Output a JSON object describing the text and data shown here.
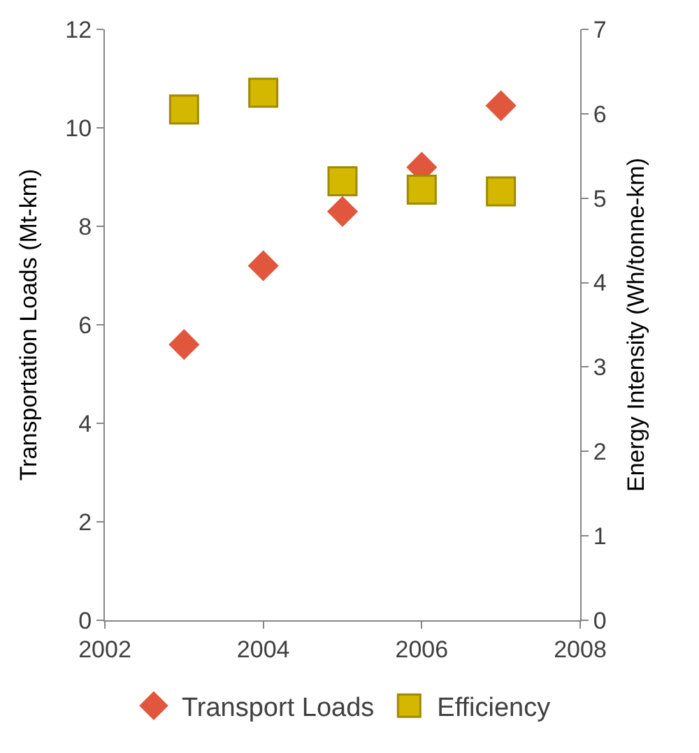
{
  "chart_data": {
    "type": "scatter",
    "x": [
      2003,
      2004,
      2005,
      2006,
      2007
    ],
    "series": [
      {
        "name": "Transport Loads",
        "color": "#e0573d",
        "marker": "diamond",
        "values": [
          5.6,
          7.2,
          8.3,
          9.2,
          10.45
        ]
      },
      {
        "name": "Efficiency",
        "color": "#d4b800",
        "marker": "square",
        "axis": "y2",
        "values": [
          6.05,
          6.25,
          5.2,
          5.1,
          5.08
        ]
      }
    ],
    "xlim": [
      2002,
      2008
    ],
    "xticks": [
      2002,
      2004,
      2006,
      2008
    ],
    "ylim": [
      0,
      12
    ],
    "yticks": [
      0,
      2,
      4,
      6,
      8,
      10,
      12
    ],
    "y2lim": [
      0,
      7
    ],
    "y2ticks": [
      0,
      1,
      2,
      3,
      4,
      5,
      6,
      7
    ],
    "ylabel": "Transportation Loads (Mt-km)",
    "y2label": "Energy Intensity (Wh/tonne-km)",
    "legend": "bottom"
  }
}
